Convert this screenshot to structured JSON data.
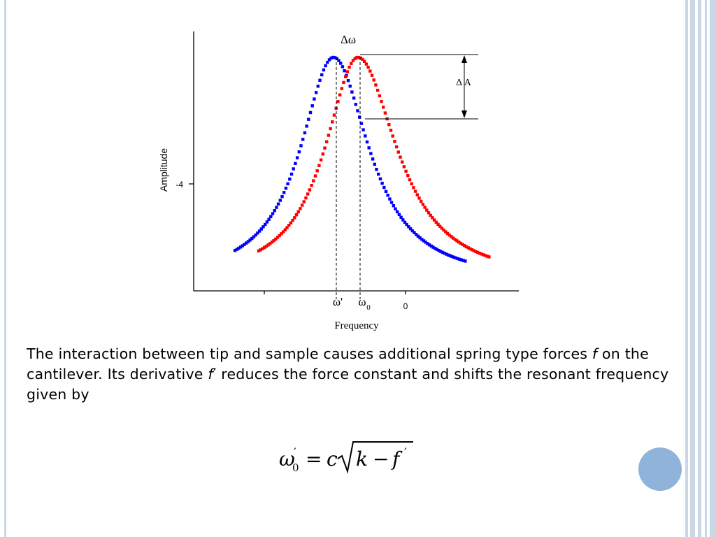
{
  "slide": {
    "caption_part1": "The interaction between tip and sample causes additional spring type forces ",
    "caption_f1": "f",
    "caption_part2": " on the cantilever. Its derivative ",
    "caption_f2": "f′",
    "caption_part3": " reduces the force constant and shifts the resonant frequency given by",
    "formula": {
      "lhs_omega": "ω",
      "lhs_prime": "′",
      "lhs_sub": "0",
      "equals": "=",
      "c": "c",
      "k": "k",
      "minus": "−",
      "f": "f",
      "f_prime": "′"
    },
    "colors": {
      "accent": "#8fb3d9",
      "border": "#c9d7e6"
    }
  },
  "chart_data": {
    "type": "scatter",
    "xlabel": "Frequency",
    "ylabel": "Amplitude",
    "y_tick_labels": [
      "-4"
    ],
    "x_tick_labels": [
      "ω'",
      "ω",
      "0"
    ],
    "x_subscript_label": "0",
    "annotations": [
      "Δω",
      "Δ A"
    ],
    "series": [
      {
        "color": "#0000ff",
        "peak_x": "ω'"
      },
      {
        "color": "#ff0000",
        "peak_x": "ω0"
      }
    ],
    "grid": false,
    "legend": "none"
  }
}
